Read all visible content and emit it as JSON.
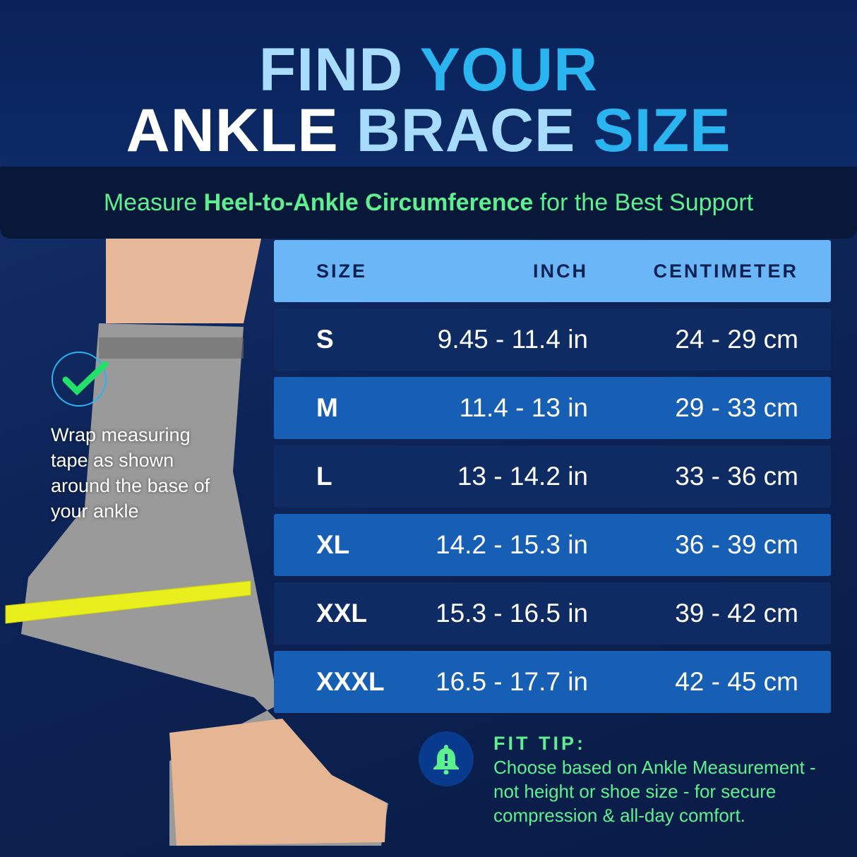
{
  "title": {
    "line1_a": "FIND ",
    "line1_b": "YOUR",
    "line2_a": "ANKLE ",
    "line2_b": "BRACE ",
    "line2_c": "SIZE"
  },
  "subtitle": {
    "pre": "Measure ",
    "bold": "Heel-to-Ankle Circumference",
    "post": " for the Best Support"
  },
  "instruction": "Wrap measuring tape as shown around the base of your ankle",
  "table": {
    "headers": [
      "SIZE",
      "INCH",
      "CENTIMETER"
    ],
    "rows": [
      [
        "S",
        "9.45 - 11.4 in",
        "24 - 29 cm"
      ],
      [
        "M",
        "11.4 - 13 in",
        "29 - 33 cm"
      ],
      [
        "L",
        "13 - 14.2 in",
        "33 - 36 cm"
      ],
      [
        "XL",
        "14.2 - 15.3 in",
        "36 - 39 cm"
      ],
      [
        "XXL",
        "15.3 - 16.5 in",
        "39 - 42 cm"
      ],
      [
        "XXXL",
        "16.5 - 17.7 in",
        "42 - 45 cm"
      ]
    ]
  },
  "fit_tip": {
    "heading": "FIT TIP:",
    "text": "Choose based on Ankle Measurement - not height or shoe size - for secure compression & all-day comfort.",
    "icon": "bell-alert-icon"
  },
  "colors": {
    "accent_green": "#5ef08f",
    "accent_cyan": "#2ab4f0",
    "header_row": "#6ab6f6"
  }
}
